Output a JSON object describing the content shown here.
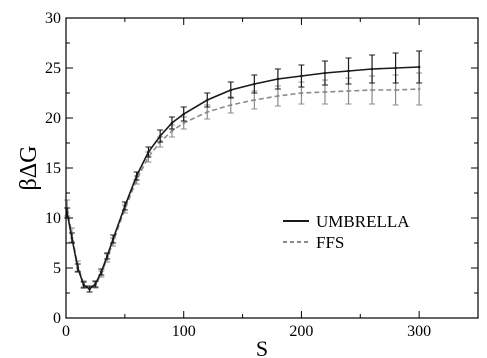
{
  "chart_data": {
    "type": "line",
    "title": "",
    "xlabel": "S",
    "ylabel": "βΔG",
    "xlim": [
      0,
      350
    ],
    "ylim": [
      0,
      30
    ],
    "xticks": [
      0,
      100,
      200,
      300
    ],
    "yticks": [
      0,
      5,
      10,
      15,
      20,
      25,
      30
    ],
    "grid": false,
    "legend_position": "center-right",
    "series": [
      {
        "name": "UMBRELLA",
        "color": "#1a1a1a",
        "line_style": "solid",
        "x": [
          1,
          5,
          10,
          15,
          20,
          25,
          30,
          35,
          40,
          50,
          60,
          70,
          80,
          90,
          100,
          120,
          140,
          160,
          180,
          200,
          220,
          240,
          260,
          280,
          300
        ],
        "y": [
          10.5,
          8.0,
          5.0,
          3.3,
          2.9,
          3.4,
          4.6,
          6.2,
          7.9,
          11.2,
          14.2,
          16.6,
          18.2,
          19.5,
          20.4,
          21.8,
          22.8,
          23.4,
          23.9,
          24.2,
          24.5,
          24.7,
          24.9,
          25.0,
          25.1
        ],
        "error": [
          0.5,
          0.5,
          0.4,
          0.3,
          0.3,
          0.3,
          0.3,
          0.3,
          0.4,
          0.4,
          0.4,
          0.5,
          0.6,
          0.6,
          0.7,
          0.7,
          0.8,
          0.9,
          1.0,
          1.1,
          1.2,
          1.3,
          1.4,
          1.5,
          1.6
        ]
      },
      {
        "name": "FFS",
        "color": "#8c8c8c",
        "line_style": "dashed",
        "x": [
          1,
          5,
          10,
          15,
          20,
          25,
          30,
          35,
          40,
          50,
          60,
          70,
          80,
          90,
          100,
          120,
          140,
          160,
          180,
          200,
          220,
          240,
          260,
          280,
          300
        ],
        "y": [
          11.0,
          8.3,
          5.2,
          3.4,
          2.9,
          3.3,
          4.4,
          6.0,
          7.6,
          10.9,
          13.8,
          16.1,
          17.6,
          18.7,
          19.5,
          20.6,
          21.3,
          21.8,
          22.2,
          22.5,
          22.6,
          22.7,
          22.8,
          22.8,
          22.9
        ],
        "error": [
          0.8,
          0.7,
          0.5,
          0.3,
          0.3,
          0.3,
          0.3,
          0.4,
          0.4,
          0.4,
          0.4,
          0.5,
          0.5,
          0.6,
          0.6,
          0.7,
          0.8,
          0.9,
          1.0,
          1.1,
          1.2,
          1.3,
          1.4,
          1.5,
          1.6
        ]
      }
    ]
  }
}
